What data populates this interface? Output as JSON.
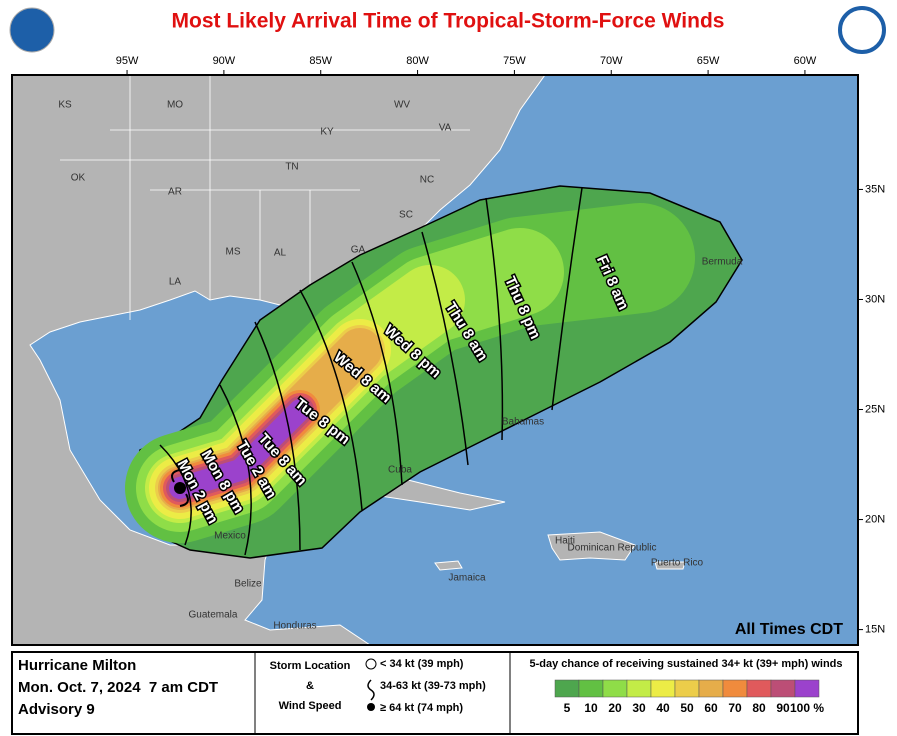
{
  "header": {
    "title": "Most Likely Arrival Time of Tropical-Storm-Force Winds"
  },
  "map": {
    "xlim": [
      -100.94,
      -57.26
    ],
    "ylim": [
      14.3,
      40.2
    ],
    "xticks": [
      {
        "value": -95,
        "label": "95W"
      },
      {
        "value": -90,
        "label": "90W"
      },
      {
        "value": -85,
        "label": "85W"
      },
      {
        "value": -80,
        "label": "80W"
      },
      {
        "value": -75,
        "label": "75W"
      },
      {
        "value": -70,
        "label": "70W"
      },
      {
        "value": -65,
        "label": "65W"
      },
      {
        "value": -60,
        "label": "60W"
      }
    ],
    "yticks": [
      {
        "value": 35,
        "label": "35N"
      },
      {
        "value": 30,
        "label": "30N"
      },
      {
        "value": 25,
        "label": "25N"
      },
      {
        "value": 20,
        "label": "20N"
      },
      {
        "value": 15,
        "label": "15N"
      }
    ],
    "states": [
      "KS",
      "MO",
      "KY",
      "WV",
      "VA",
      "TN",
      "NC",
      "OK",
      "AR",
      "SC",
      "MS",
      "AL",
      "GA",
      "LA"
    ],
    "places": [
      "Bermuda",
      "Bahamas",
      "Cuba",
      "Haiti",
      "Dominican Republic",
      "Puerto Rico",
      "Jamaica",
      "Mexico",
      "Belize",
      "Guatemala",
      "Honduras"
    ],
    "arrival_times": [
      "Mon 2 pm",
      "Mon 8 pm",
      "Tue 2 am",
      "Tue 8 am",
      "Tue 8 pm",
      "Wed 8 am",
      "Wed 8 pm",
      "Thu 8 am",
      "Thu 8 pm",
      "Fri 8 am"
    ],
    "time_note": "All Times CDT"
  },
  "legend": {
    "storm": "Hurricane Milton",
    "date": "Mon. Oct. 7, 2024  7 am CDT",
    "advisory": "Advisory 9",
    "storm_location": "Storm Location",
    "and": "&",
    "wind_speed": "Wind Speed",
    "speeds": [
      "< 34 kt (39 mph)",
      "34-63 kt (39-73 mph)",
      "≥ 64 kt (74 mph)"
    ],
    "chance_title": "5-day chance of receiving sustained 34+ kt (39+ mph) winds",
    "scale": [
      {
        "label": "5",
        "color": "#4ea64e"
      },
      {
        "label": "10",
        "color": "#62c043"
      },
      {
        "label": "20",
        "color": "#8fdd48"
      },
      {
        "label": "30",
        "color": "#c3ec47"
      },
      {
        "label": "40",
        "color": "#ecec46"
      },
      {
        "label": "50",
        "color": "#eccd4a"
      },
      {
        "label": "60",
        "color": "#e6ad4a"
      },
      {
        "label": "70",
        "color": "#f08b3d"
      },
      {
        "label": "80",
        "color": "#e05a5c"
      },
      {
        "label": "90",
        "color": "#bc4e76"
      },
      {
        "label": "100 %",
        "color": "#9b42cc"
      }
    ]
  }
}
